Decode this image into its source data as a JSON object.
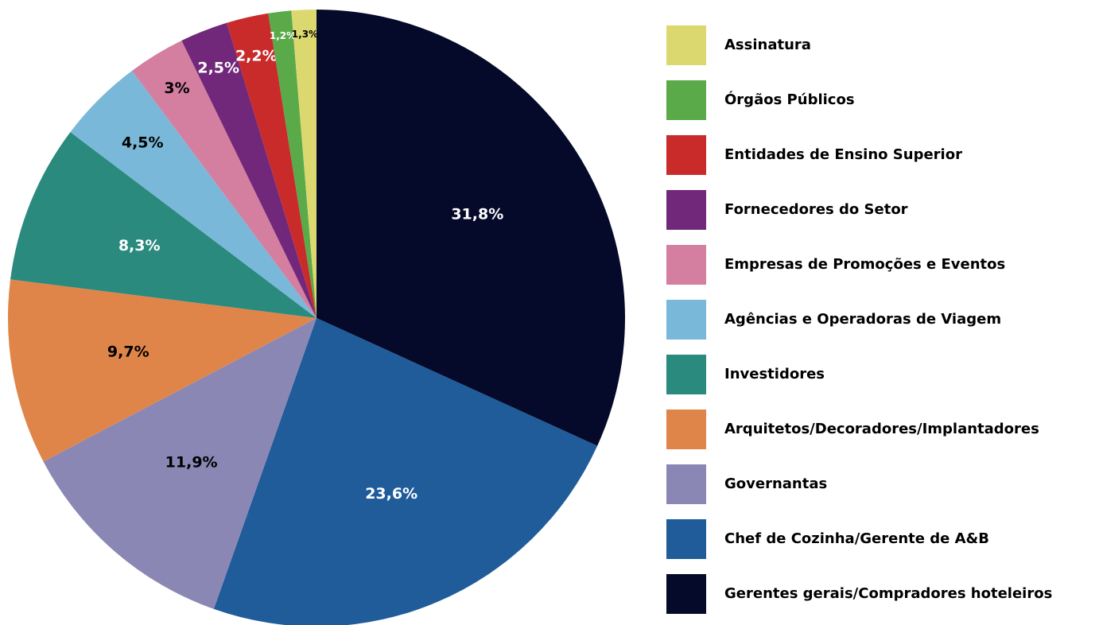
{
  "chart_data": {
    "type": "pie",
    "categories": [
      "Gerentes gerais/Compradores hoteleiros",
      "Chef de Cozinha/Gerente de A&B",
      "Governantas",
      "Arquitetos/Decoradores/Implantadores",
      "Investidores",
      "Agências e Operadoras de Viagem",
      "Empresas de Promoções e Eventos",
      "Fornecedores do Setor",
      "Entidades de Ensino Superior",
      "Órgãos Públicos",
      "Assinatura"
    ],
    "values": [
      31.8,
      23.6,
      11.9,
      9.7,
      8.3,
      4.5,
      3,
      2.5,
      2.2,
      1.2,
      1.3
    ],
    "value_labels": [
      "31,8%",
      "23,6%",
      "11,9%",
      "9,7%",
      "8,3%",
      "4,5%",
      "3%",
      "2,5%",
      "2,2%",
      "1,2%",
      "1,3%"
    ],
    "colors": [
      "#050a2a",
      "#1f5c99",
      "#8a87b4",
      "#e0854a",
      "#2a8a7e",
      "#7ab8d9",
      "#d47fa0",
      "#72287a",
      "#c92b2b",
      "#5aaa4a",
      "#dcd870"
    ],
    "legend": "right"
  }
}
